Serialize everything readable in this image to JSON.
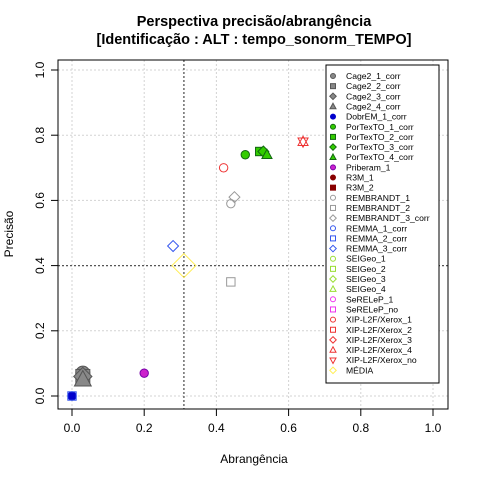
{
  "chart_data": {
    "type": "scatter",
    "title_line1": "Perspectiva precisão/abrangência",
    "title_line2": "[Identificação : ALT : tempo_sonorm_TEMPO]",
    "xlabel": "Abrangência",
    "ylabel": "Precisão",
    "xlim": [
      0,
      1
    ],
    "ylim": [
      0,
      1
    ],
    "xticks": [
      "0.0",
      "0.2",
      "0.4",
      "0.6",
      "0.8",
      "1.0"
    ],
    "yticks": [
      "0.0",
      "0.2",
      "0.4",
      "0.6",
      "0.8",
      "1.0"
    ],
    "grid": true,
    "legend_position": "top-right",
    "reference_lines": {
      "x": 0.31,
      "y": 0.4
    },
    "series": [
      {
        "name": "Cage2_1_corr",
        "shape": "circle",
        "color": "#555555",
        "fill": "#888888",
        "x": 0.03,
        "y": 0.07
      },
      {
        "name": "Cage2_2_corr",
        "shape": "square",
        "color": "#555555",
        "fill": "#888888",
        "x": 0.03,
        "y": 0.06
      },
      {
        "name": "Cage2_3_corr",
        "shape": "diamond",
        "color": "#555555",
        "fill": "#888888",
        "x": 0.03,
        "y": 0.06
      },
      {
        "name": "Cage2_4_corr",
        "shape": "triangle",
        "color": "#555555",
        "fill": "#888888",
        "x": 0.03,
        "y": 0.05
      },
      {
        "name": "DobrEM_1_corr",
        "shape": "circle",
        "color": "#0000cc",
        "fill": "#0000cc",
        "x": 0.0,
        "y": 0.0
      },
      {
        "name": "PorTexTO_1_corr",
        "shape": "circle",
        "color": "#116611",
        "fill": "#33cc00",
        "x": 0.48,
        "y": 0.74
      },
      {
        "name": "PorTexTO_2_corr",
        "shape": "square",
        "color": "#116611",
        "fill": "#33cc00",
        "x": 0.52,
        "y": 0.75
      },
      {
        "name": "PorTexTO_3_corr",
        "shape": "diamond",
        "color": "#116611",
        "fill": "#33cc00",
        "x": 0.53,
        "y": 0.75
      },
      {
        "name": "PorTexTO_4_corr",
        "shape": "triangle",
        "color": "#116611",
        "fill": "#33cc00",
        "x": 0.54,
        "y": 0.74
      },
      {
        "name": "Priberam_1",
        "shape": "circle",
        "color": "#7700aa",
        "fill": "#cc22cc",
        "x": 0.2,
        "y": 0.07
      },
      {
        "name": "R3M_1",
        "shape": "circle",
        "color": "#880000",
        "fill": "#880000",
        "x": null,
        "y": null
      },
      {
        "name": "R3M_2",
        "shape": "square",
        "color": "#880000",
        "fill": "#880000",
        "x": null,
        "y": null
      },
      {
        "name": "REMBRANDT_1",
        "shape": "circle",
        "color": "#999999",
        "fill": "none",
        "x": 0.44,
        "y": 0.59
      },
      {
        "name": "REMBRANDT_2",
        "shape": "square",
        "color": "#999999",
        "fill": "none",
        "x": 0.44,
        "y": 0.35
      },
      {
        "name": "REMBRANDT_3_corr",
        "shape": "diamond",
        "color": "#999999",
        "fill": "none",
        "x": 0.45,
        "y": 0.61
      },
      {
        "name": "REMMA_1_corr",
        "shape": "circle",
        "color": "#3355ee",
        "fill": "none",
        "x": null,
        "y": null
      },
      {
        "name": "REMMA_2_corr",
        "shape": "square",
        "color": "#3355ee",
        "fill": "none",
        "x": 0.0,
        "y": 0.0
      },
      {
        "name": "REMMA_3_corr",
        "shape": "diamond",
        "color": "#3355ee",
        "fill": "none",
        "x": 0.28,
        "y": 0.46
      },
      {
        "name": "SEIGeo_1",
        "shape": "circle",
        "color": "#99dd33",
        "fill": "none",
        "x": null,
        "y": null
      },
      {
        "name": "SEIGeo_2",
        "shape": "square",
        "color": "#99dd33",
        "fill": "none",
        "x": null,
        "y": null
      },
      {
        "name": "SEIGeo_3",
        "shape": "diamond",
        "color": "#99dd33",
        "fill": "none",
        "x": null,
        "y": null
      },
      {
        "name": "SEIGeo_4",
        "shape": "triangle",
        "color": "#99dd33",
        "fill": "none",
        "x": null,
        "y": null
      },
      {
        "name": "SeRELeP_1",
        "shape": "circle",
        "color": "#ee33ee",
        "fill": "none",
        "x": null,
        "y": null
      },
      {
        "name": "SeRELeP_no",
        "shape": "square",
        "color": "#ee33ee",
        "fill": "none",
        "x": null,
        "y": null
      },
      {
        "name": "XIP-L2F/Xerox_1",
        "shape": "circle",
        "color": "#ee3333",
        "fill": "none",
        "x": 0.42,
        "y": 0.7
      },
      {
        "name": "XIP-L2F/Xerox_2",
        "shape": "square",
        "color": "#ee3333",
        "fill": "none",
        "x": null,
        "y": null
      },
      {
        "name": "XIP-L2F/Xerox_3",
        "shape": "diamond",
        "color": "#ee3333",
        "fill": "none",
        "x": null,
        "y": null
      },
      {
        "name": "XIP-L2F/Xerox_4",
        "shape": "triangle",
        "color": "#ee3333",
        "fill": "none",
        "x": 0.64,
        "y": 0.78
      },
      {
        "name": "XIP-L2F/Xerox_no",
        "shape": "triangle-down",
        "color": "#ee3333",
        "fill": "none",
        "x": 0.64,
        "y": 0.78
      },
      {
        "name": "MÉDIA",
        "shape": "diamond-large",
        "color": "#ffee55",
        "fill": "none",
        "x": 0.31,
        "y": 0.4
      }
    ]
  }
}
